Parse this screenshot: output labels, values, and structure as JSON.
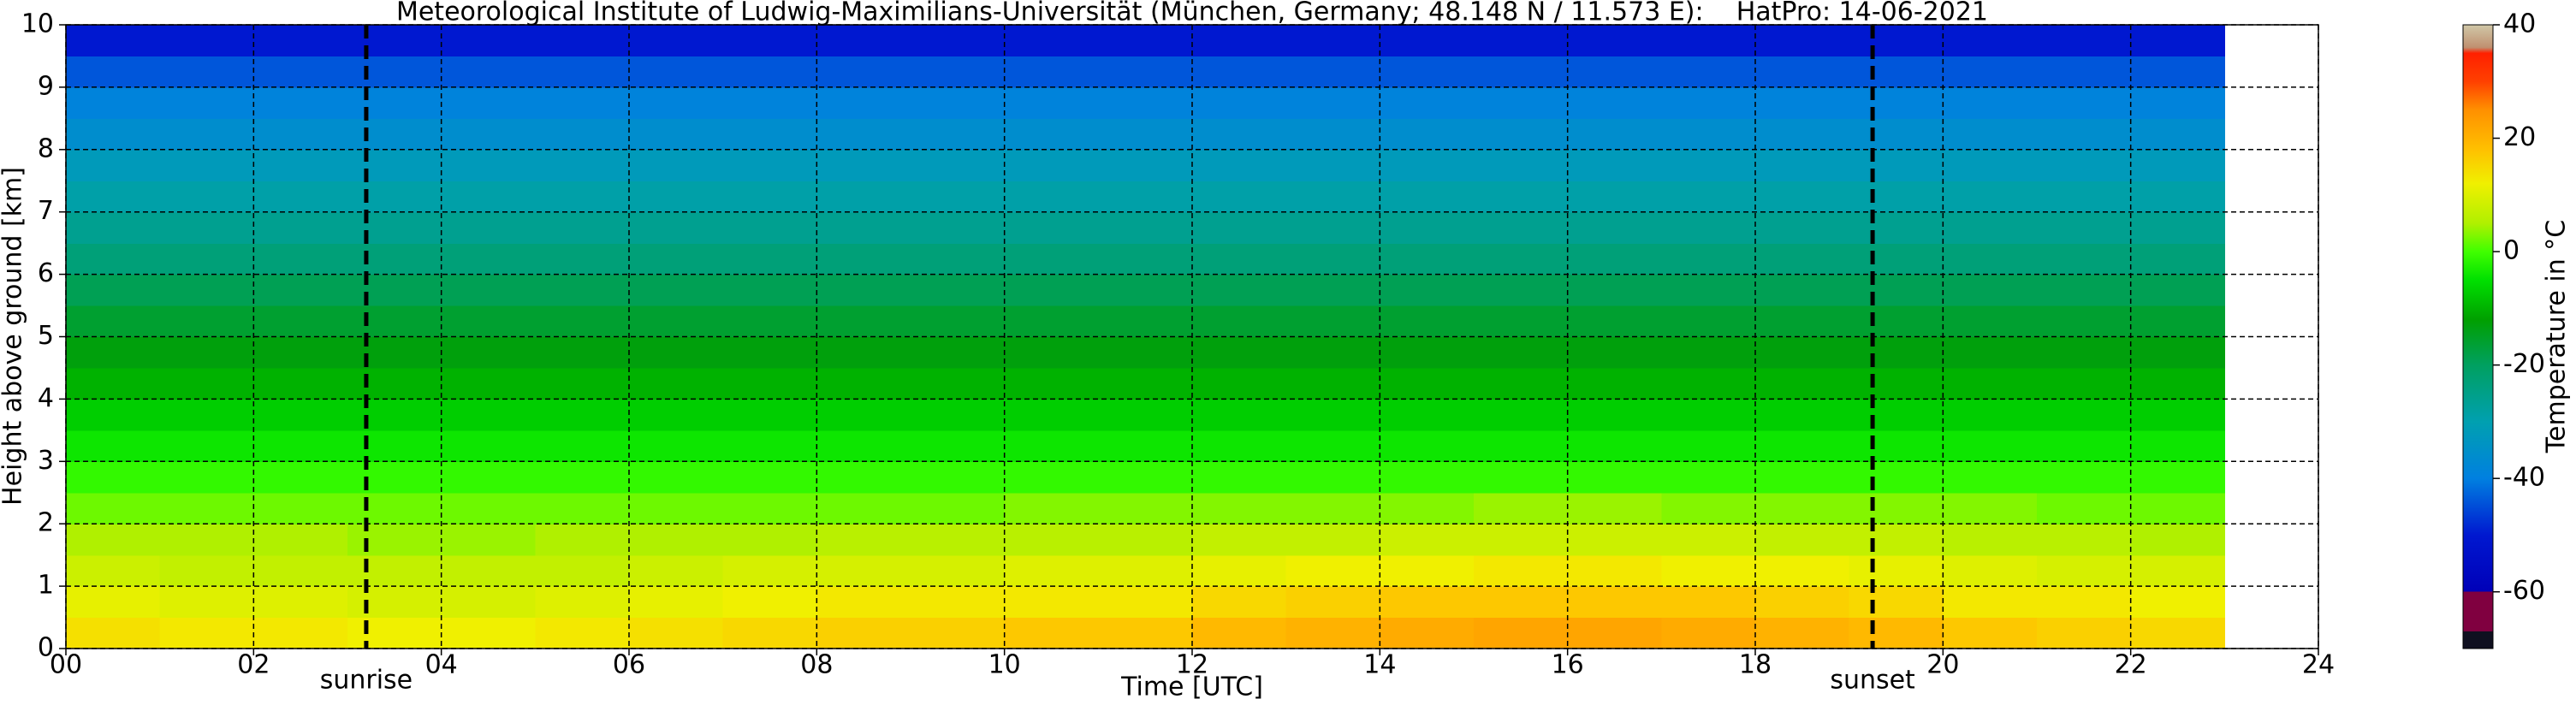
{
  "chart_data": {
    "type": "heatmap",
    "title": "Meteorological Institute of Ludwig-Maximilians-Universität (München, Germany; 48.148 N / 11.573 E):    HatPro: 14-06-2021",
    "x_label": "Time [UTC]",
    "y_label": "Height above ground [km]",
    "colorbar_label": "Temperature in °C",
    "xbins": [
      0,
      1,
      2,
      3,
      4,
      5,
      6,
      7,
      8,
      9,
      10,
      11,
      12,
      13,
      14,
      15,
      16,
      17,
      18,
      19,
      20,
      21,
      22,
      23
    ],
    "ybins": [
      0,
      0.5,
      1,
      1.5,
      2,
      2.5,
      3,
      3.5,
      4,
      4.5,
      5,
      5.5,
      6,
      6.5,
      7,
      7.5,
      8,
      8.5,
      9,
      9.5,
      10
    ],
    "values": [
      [
        14,
        13,
        13,
        12,
        12,
        13,
        14,
        15,
        16,
        16,
        17,
        17,
        19,
        20,
        21,
        22,
        22,
        21,
        20,
        19,
        17,
        16,
        15
      ],
      [
        11,
        10,
        10,
        9,
        9,
        10,
        11,
        12,
        13,
        13,
        13,
        13,
        15,
        16,
        17,
        17,
        17,
        17,
        16,
        15,
        13,
        13,
        12
      ],
      [
        8,
        7,
        7,
        7,
        7,
        7,
        8,
        9,
        9,
        9,
        10,
        10,
        11,
        12,
        12,
        13,
        13,
        12,
        12,
        11,
        10,
        9,
        9
      ],
      [
        5,
        5,
        5,
        4,
        4,
        5,
        5,
        5,
        6,
        6,
        6,
        6,
        7,
        7,
        8,
        8,
        8,
        8,
        7,
        7,
        6,
        6,
        5
      ],
      [
        2,
        2,
        2,
        2,
        2,
        2,
        2,
        2,
        2,
        2,
        3,
        3,
        3,
        3,
        3,
        4,
        4,
        3,
        3,
        3,
        3,
        2,
        2
      ],
      [
        -1,
        -1,
        -1,
        -1,
        -1,
        -1,
        -1,
        -1,
        -1,
        -1,
        -1,
        -1,
        -1,
        -1,
        -1,
        -1,
        -1,
        -1,
        -1,
        -1,
        -1,
        -1,
        -1
      ],
      [
        -4,
        -4,
        -4,
        -4,
        -4,
        -4,
        -4,
        -4,
        -4,
        -4,
        -4,
        -4,
        -4,
        -4,
        -4,
        -4,
        -4,
        -4,
        -4,
        -4,
        -4,
        -4,
        -4
      ],
      [
        -7,
        -7,
        -7,
        -7,
        -7,
        -7,
        -7,
        -7,
        -7,
        -7,
        -7,
        -7,
        -7,
        -7,
        -7,
        -7,
        -7,
        -7,
        -7,
        -7,
        -7,
        -7,
        -7
      ],
      [
        -10,
        -10,
        -10,
        -10,
        -10,
        -10,
        -10,
        -10,
        -10,
        -10,
        -10,
        -10,
        -10,
        -10,
        -10,
        -10,
        -10,
        -10,
        -10,
        -10,
        -10,
        -10,
        -10
      ],
      [
        -13,
        -13,
        -13,
        -13,
        -13,
        -13,
        -13,
        -13,
        -13,
        -13,
        -13,
        -13,
        -13,
        -13,
        -13,
        -13,
        -13,
        -13,
        -13,
        -13,
        -13,
        -13,
        -13
      ],
      [
        -16,
        -16,
        -16,
        -16,
        -16,
        -16,
        -16,
        -16,
        -16,
        -16,
        -16,
        -16,
        -16,
        -16,
        -16,
        -16,
        -16,
        -16,
        -16,
        -16,
        -16,
        -16,
        -16
      ],
      [
        -19,
        -19,
        -19,
        -19,
        -19,
        -19,
        -19,
        -19,
        -19,
        -19,
        -19,
        -19,
        -19,
        -19,
        -19,
        -19,
        -19,
        -19,
        -19,
        -19,
        -19,
        -19,
        -19
      ],
      [
        -23,
        -23,
        -23,
        -23,
        -23,
        -23,
        -23,
        -23,
        -23,
        -23,
        -23,
        -23,
        -23,
        -23,
        -23,
        -23,
        -23,
        -23,
        -23,
        -23,
        -23,
        -23,
        -23
      ],
      [
        -26,
        -26,
        -26,
        -26,
        -26,
        -26,
        -26,
        -26,
        -26,
        -26,
        -26,
        -26,
        -26,
        -26,
        -26,
        -26,
        -26,
        -26,
        -26,
        -26,
        -26,
        -26,
        -26
      ],
      [
        -29,
        -29,
        -29,
        -29,
        -29,
        -29,
        -29,
        -29,
        -29,
        -29,
        -29,
        -29,
        -29,
        -29,
        -29,
        -29,
        -29,
        -29,
        -29,
        -29,
        -29,
        -29,
        -29
      ],
      [
        -32,
        -32,
        -32,
        -32,
        -32,
        -32,
        -32,
        -32,
        -32,
        -32,
        -32,
        -32,
        -32,
        -32,
        -32,
        -32,
        -32,
        -32,
        -32,
        -32,
        -32,
        -32,
        -32
      ],
      [
        -36,
        -36,
        -36,
        -36,
        -36,
        -36,
        -36,
        -36,
        -36,
        -36,
        -36,
        -36,
        -36,
        -36,
        -36,
        -36,
        -36,
        -36,
        -36,
        -36,
        -36,
        -36,
        -36
      ],
      [
        -39,
        -39,
        -39,
        -39,
        -39,
        -39,
        -39,
        -39,
        -39,
        -39,
        -39,
        -39,
        -39,
        -39,
        -39,
        -39,
        -39,
        -39,
        -39,
        -39,
        -39,
        -39,
        -39
      ],
      [
        -44,
        -44,
        -44,
        -44,
        -44,
        -44,
        -44,
        -44,
        -44,
        -44,
        -44,
        -44,
        -44,
        -44,
        -44,
        -44,
        -44,
        -44,
        -44,
        -44,
        -44,
        -44,
        -44
      ],
      [
        -50,
        -50,
        -50,
        -50,
        -50,
        -50,
        -50,
        -50,
        -50,
        -50,
        -50,
        -50,
        -50,
        -50,
        -50,
        -50,
        -50,
        -50,
        -50,
        -50,
        -50,
        -50,
        -50
      ]
    ],
    "xlim": [
      0,
      24
    ],
    "xticks": [
      {
        "value": 0,
        "label": "00"
      },
      {
        "value": 2,
        "label": "02"
      },
      {
        "value": 4,
        "label": "04"
      },
      {
        "value": 6,
        "label": "06"
      },
      {
        "value": 8,
        "label": "08"
      },
      {
        "value": 10,
        "label": "10"
      },
      {
        "value": 12,
        "label": "12"
      },
      {
        "value": 14,
        "label": "14"
      },
      {
        "value": 16,
        "label": "16"
      },
      {
        "value": 18,
        "label": "18"
      },
      {
        "value": 20,
        "label": "20"
      },
      {
        "value": 22,
        "label": "22"
      },
      {
        "value": 24,
        "label": "24"
      }
    ],
    "ylim": [
      0,
      10
    ],
    "yticks": [
      0,
      1,
      2,
      3,
      4,
      5,
      6,
      7,
      8,
      9,
      10
    ],
    "zlim": [
      -70,
      40
    ],
    "zticks": [
      -60,
      -40,
      -20,
      0,
      20,
      40
    ],
    "grid": true,
    "colorscale": [
      [
        -70,
        "#101020"
      ],
      [
        -67,
        "#101020"
      ],
      [
        -67,
        "#800040"
      ],
      [
        -60,
        "#800040"
      ],
      [
        -60,
        "#0000b8"
      ],
      [
        -50,
        "#0018d0"
      ],
      [
        -40,
        "#0080e0"
      ],
      [
        -30,
        "#00a0b0"
      ],
      [
        -20,
        "#00a060"
      ],
      [
        -12,
        "#00a000"
      ],
      [
        -5,
        "#00e000"
      ],
      [
        0,
        "#40ff00"
      ],
      [
        5,
        "#b0f000"
      ],
      [
        12,
        "#f0f000"
      ],
      [
        18,
        "#ffc000"
      ],
      [
        25,
        "#ff9000"
      ],
      [
        30,
        "#ff4000"
      ],
      [
        35,
        "#ff2000"
      ],
      [
        36,
        "#c09070"
      ],
      [
        40,
        "#d0c8a8"
      ]
    ],
    "annotations": [
      {
        "label": "sunrise",
        "x": 3.2
      },
      {
        "label": "sunset",
        "x": 19.25
      }
    ]
  }
}
